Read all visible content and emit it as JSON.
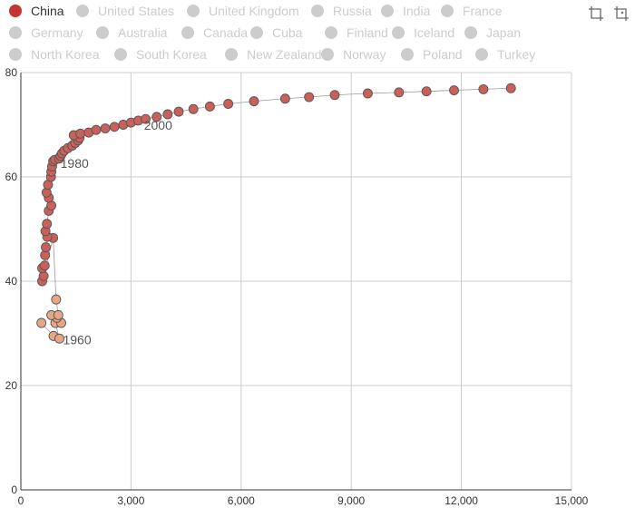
{
  "legend": {
    "items": [
      {
        "label": "China",
        "active": true
      },
      {
        "label": "United States",
        "active": false
      },
      {
        "label": "United Kingdom",
        "active": false
      },
      {
        "label": "Russia",
        "active": false
      },
      {
        "label": "India",
        "active": false
      },
      {
        "label": "France",
        "active": false
      },
      {
        "label": "Germany",
        "active": false
      },
      {
        "label": "Australia",
        "active": false
      },
      {
        "label": "Canada",
        "active": false
      },
      {
        "label": "Cuba",
        "active": false
      },
      {
        "label": "Finland",
        "active": false
      },
      {
        "label": "Iceland",
        "active": false
      },
      {
        "label": "Japan",
        "active": false
      },
      {
        "label": "North Korea",
        "active": false
      },
      {
        "label": "South Korea",
        "active": false
      },
      {
        "label": "New Zealand",
        "active": false
      },
      {
        "label": "Norway",
        "active": false
      },
      {
        "label": "Poland",
        "active": false
      },
      {
        "label": "Turkey",
        "active": false
      }
    ],
    "active_color": "#c23531",
    "inactive_color": "#cccccc",
    "active_text_color": "#333333",
    "inactive_text_color": "#cccccc"
  },
  "toolbox": {
    "icons": [
      "crop-icon",
      "restore-icon"
    ]
  },
  "chart_data": {
    "type": "scatter",
    "xlim": [
      0,
      15000
    ],
    "ylim": [
      0,
      80
    ],
    "x_ticks": [
      "0",
      "3,000",
      "6,000",
      "9,000",
      "12,000",
      "15,000"
    ],
    "y_ticks": [
      "0",
      "20",
      "40",
      "60",
      "80"
    ],
    "grid": true,
    "series": [
      {
        "colors": {
          "early": "#e8a784",
          "late": "#c9605a"
        },
        "points": [
          [
            560,
            32.0
          ],
          [
            890,
            29.5
          ],
          [
            1050,
            29.0
          ],
          [
            940,
            32.0
          ],
          [
            1100,
            32.0
          ],
          [
            980,
            33.0
          ],
          [
            830,
            33.5
          ],
          [
            1020,
            33.5
          ],
          [
            960,
            36.5
          ],
          [
            880,
            48.3
          ],
          [
            580,
            40.0
          ],
          [
            620,
            41.0
          ],
          [
            580,
            42.5
          ],
          [
            650,
            43.0
          ],
          [
            660,
            45.0
          ],
          [
            680,
            46.5
          ],
          [
            720,
            48.5
          ],
          [
            670,
            49.6
          ],
          [
            710,
            51.0
          ],
          [
            760,
            53.5
          ],
          [
            830,
            54.5
          ],
          [
            760,
            56.0
          ],
          [
            700,
            57.0
          ],
          [
            740,
            58.5
          ],
          [
            820,
            60.0
          ],
          [
            830,
            61.0
          ],
          [
            850,
            62.0
          ],
          [
            880,
            63.0
          ],
          [
            930,
            63.3
          ],
          [
            1040,
            63.5
          ],
          [
            1080,
            64.0
          ],
          [
            1120,
            64.5
          ],
          [
            1180,
            65.0
          ],
          [
            1280,
            65.5
          ],
          [
            1400,
            66.0
          ],
          [
            1480,
            66.5
          ],
          [
            1560,
            67.0
          ],
          [
            1600,
            67.5
          ],
          [
            1440,
            68.0
          ],
          [
            1620,
            68.3
          ],
          [
            1850,
            68.5
          ],
          [
            2050,
            69.0
          ],
          [
            2300,
            69.3
          ],
          [
            2550,
            69.6
          ],
          [
            2790,
            70.0
          ],
          [
            3000,
            70.4
          ],
          [
            3200,
            70.8
          ],
          [
            3400,
            71.1
          ],
          [
            3700,
            71.5
          ],
          [
            4000,
            72.0
          ],
          [
            4300,
            72.5
          ],
          [
            4700,
            73.0
          ],
          [
            5150,
            73.5
          ],
          [
            5650,
            74.0
          ],
          [
            6350,
            74.5
          ],
          [
            7200,
            75.0
          ],
          [
            7850,
            75.3
          ],
          [
            8550,
            75.7
          ],
          [
            9450,
            76.0
          ],
          [
            10300,
            76.2
          ],
          [
            11050,
            76.4
          ],
          [
            11800,
            76.6
          ],
          [
            12600,
            76.8
          ],
          [
            13350,
            77.0
          ]
        ],
        "early_count": 9
      }
    ],
    "annotations": [
      {
        "text": "1960",
        "x": 1050,
        "y": 29.0
      },
      {
        "text": "1980",
        "x": 930,
        "y": 63.3
      },
      {
        "text": "2000",
        "x": 3700,
        "y": 71.5
      }
    ]
  }
}
